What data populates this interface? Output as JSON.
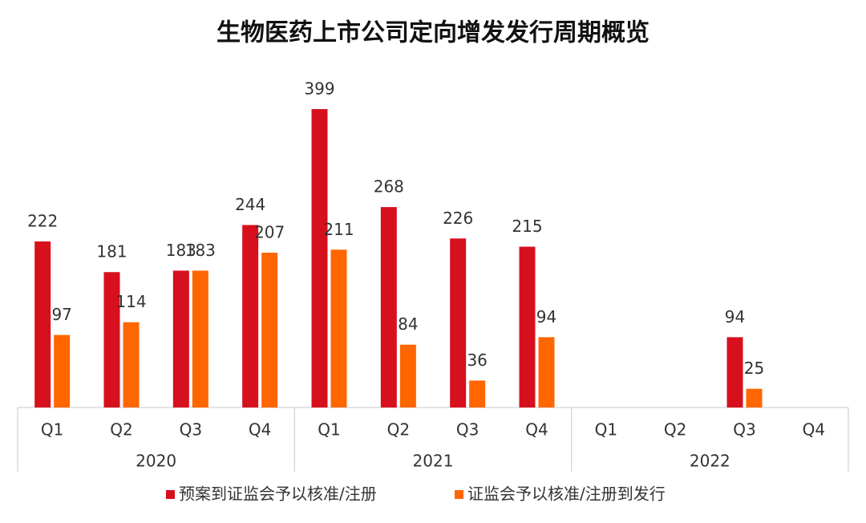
{
  "chart_data": {
    "type": "bar",
    "title": "生物医药上市公司定向增发发行周期概览",
    "categories": [
      "Q1",
      "Q2",
      "Q3",
      "Q4",
      "Q1",
      "Q2",
      "Q3",
      "Q4",
      "Q1",
      "Q2",
      "Q3",
      "Q4"
    ],
    "groups": [
      "2020",
      "2021",
      "2022"
    ],
    "series": [
      {
        "name": "预案到证监会予以核准/注册",
        "color": "#d7101e",
        "values": [
          222,
          181,
          183,
          244,
          399,
          268,
          226,
          215,
          null,
          null,
          94,
          null
        ]
      },
      {
        "name": "证监会予以核准/注册到发行",
        "color": "#ff6600",
        "values": [
          97,
          114,
          183,
          207,
          211,
          84,
          36,
          94,
          null,
          null,
          25,
          null
        ]
      }
    ]
  }
}
